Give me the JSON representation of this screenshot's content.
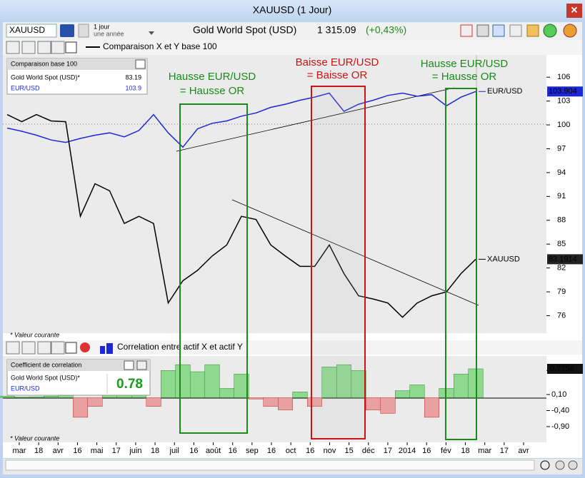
{
  "window": {
    "title": "XAUUSD (1 Jour)"
  },
  "toolbar": {
    "symbol": "XAUUSD",
    "period": "1 jour",
    "range": "une année",
    "instrument": "Gold World Spot (USD)",
    "price": "1 315.09",
    "change": "(+0,43%)"
  },
  "top_panel": {
    "header": "Comparaison X et Y base 100",
    "legend_title": "Comparaison base 100",
    "legend": [
      {
        "name": "Gold World Spot (USD)*",
        "value": "83.19"
      },
      {
        "name": "EUR/USD",
        "value": "103.9"
      }
    ],
    "footnote": "* Valeur courante"
  },
  "bottom_panel": {
    "header": "Correlation entre actif X et actif Y",
    "legend_title": "Coefficient de correlation",
    "legend": [
      {
        "name": "Gold World Spot (USD)*"
      },
      {
        "name": "EUR/USD"
      }
    ],
    "legend_value": "0.78",
    "footnote": "* Valeur courante"
  },
  "annotations": [
    {
      "lines": [
        "Hausse EUR/USD",
        "= Hausse OR"
      ],
      "color": "#1a8a1a"
    },
    {
      "lines": [
        "Baisse EUR/USD",
        "= Baisse OR"
      ],
      "color": "#c81414"
    },
    {
      "lines": [
        "Hausse EUR/USD",
        "= Hausse OR"
      ],
      "color": "#1a8a1a"
    }
  ],
  "x_axis": {
    "labels": [
      "mar",
      "18",
      "avr",
      "16",
      "mai",
      "17",
      "juin",
      "18",
      "juil",
      "16",
      "août",
      "16",
      "sep",
      "16",
      "oct",
      "16",
      "nov",
      "15",
      "déc",
      "17",
      "2014",
      "16",
      "fév",
      "18",
      "mar",
      "17",
      "avr"
    ]
  },
  "chart_data": [
    {
      "type": "line",
      "ylim": [
        73.8,
        108.8
      ],
      "yticks": [
        106,
        103,
        100,
        97,
        94,
        91,
        88,
        85,
        82,
        79,
        76
      ],
      "series": [
        {
          "name": "EUR/USD",
          "color": "#1c28d8",
          "last_value": 103.904,
          "values": [
            99.6,
            99.2,
            98.7,
            98.1,
            97.8,
            98.3,
            98.7,
            99.0,
            98.5,
            99.3,
            101.3,
            99.0,
            97.2,
            99.5,
            100.2,
            100.5,
            101.1,
            101.5,
            102.2,
            102.6,
            103.1,
            103.5,
            104.0,
            101.7,
            102.6,
            103.1,
            103.7,
            104.0,
            103.6,
            103.8,
            102.4,
            103.5,
            104.2
          ]
        },
        {
          "name": "XAUUSD",
          "color": "#000000",
          "last_value": 83.1914,
          "values": [
            101.3,
            100.4,
            101.3,
            100.5,
            100.4,
            88.5,
            92.6,
            91.7,
            87.6,
            88.5,
            87.6,
            77.6,
            80.4,
            81.7,
            83.5,
            84.9,
            88.5,
            88.1,
            84.9,
            83.5,
            82.2,
            82.2,
            84.9,
            81.3,
            78.5,
            78.1,
            77.6,
            75.8,
            77.6,
            78.5,
            79.0,
            81.3,
            83.1
          ]
        }
      ]
    },
    {
      "type": "bar",
      "ylim": [
        -1.39,
        1.3
      ],
      "positive_color": "#8ed98e",
      "negative_color": "#eaa0a0",
      "last_value": 0.7756,
      "yticks": [
        {
          "value": 0.85,
          "label": "0,85"
        },
        {
          "value": 0.1,
          "label": "0,10"
        },
        {
          "value": -0.4,
          "label": "-0,40"
        },
        {
          "value": -0.9,
          "label": "-0,90"
        }
      ],
      "values": [
        0.05,
        0.02,
        0.03,
        0.05,
        0.07,
        -0.61,
        -0.27,
        0.4,
        0.52,
        0.63,
        -0.27,
        0.85,
        1.03,
        0.81,
        1.03,
        0.29,
        0.74,
        -0.04,
        -0.27,
        -0.38,
        0.18,
        -0.27,
        0.96,
        1.03,
        0.85,
        -0.38,
        -0.49,
        0.22,
        0.4,
        -0.61,
        0.29,
        0.74,
        0.9
      ]
    }
  ]
}
